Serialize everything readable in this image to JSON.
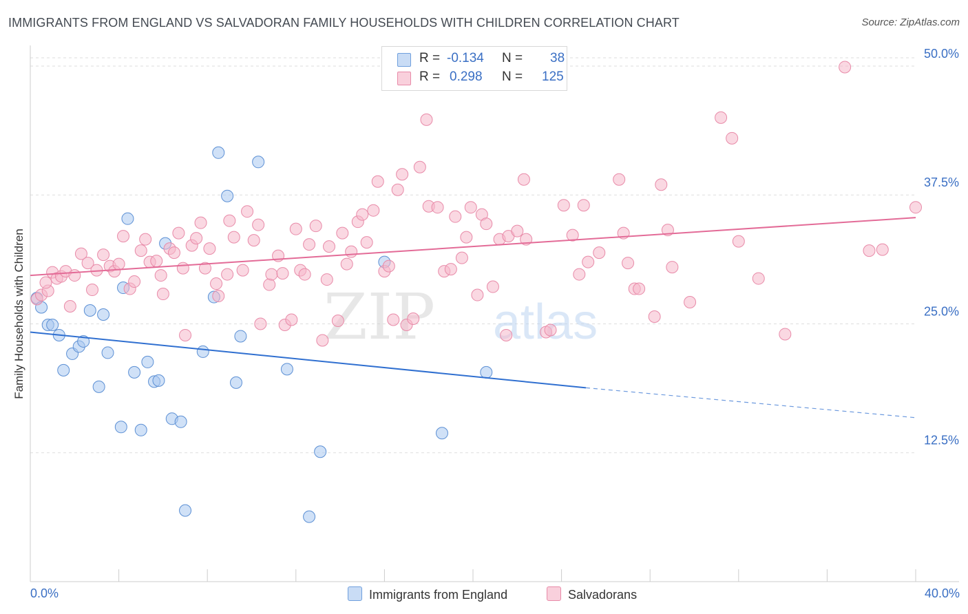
{
  "header": {
    "title": "IMMIGRANTS FROM ENGLAND VS SALVADORAN FAMILY HOUSEHOLDS WITH CHILDREN CORRELATION CHART",
    "source": "Source: ZipAtlas.com"
  },
  "watermark": {
    "zip": "ZIP",
    "atlas": "atlas"
  },
  "legend": {
    "r_label": "R =",
    "n_label": "N =",
    "series": [
      {
        "r": "-0.134",
        "n": "38",
        "color": "#a9c8f0"
      },
      {
        "r": "0.298",
        "n": "125",
        "color": "#f5b8cb"
      }
    ]
  },
  "chart_data": {
    "type": "scatter",
    "title": "IMMIGRANTS FROM ENGLAND VS SALVADORAN FAMILY HOUSEHOLDS WITH CHILDREN CORRELATION CHART",
    "xlabel": "",
    "ylabel": "Family Households with Children",
    "xlim": [
      0,
      40
    ],
    "ylim": [
      0,
      52
    ],
    "x_tick_labels": [
      "0.0%",
      "40.0%"
    ],
    "y_ticks": [
      12.5,
      25.0,
      37.5,
      50.0
    ],
    "y_tick_labels": [
      "12.5%",
      "25.0%",
      "37.5%",
      "50.0%"
    ],
    "grid": "horizontal dashed",
    "legend_placement": "bottom",
    "series": [
      {
        "name": "Immigrants from England",
        "color": "#a9c8f0",
        "stroke": "#5b8fd4",
        "trend": {
          "x": [
            0,
            25.1
          ],
          "y": [
            24.2,
            18.8
          ],
          "dashed_to": [
            40,
            15.9
          ],
          "color": "#2f6fd0"
        },
        "points": [
          [
            0.3,
            27.5
          ],
          [
            0.5,
            26.6
          ],
          [
            0.8,
            24.9
          ],
          [
            1.0,
            24.9
          ],
          [
            1.3,
            23.9
          ],
          [
            1.9,
            22.1
          ],
          [
            1.5,
            20.5
          ],
          [
            2.2,
            22.8
          ],
          [
            2.4,
            23.3
          ],
          [
            2.7,
            26.3
          ],
          [
            3.1,
            18.9
          ],
          [
            3.3,
            25.9
          ],
          [
            3.5,
            22.2
          ],
          [
            4.2,
            28.5
          ],
          [
            4.4,
            35.2
          ],
          [
            4.1,
            15.0
          ],
          [
            4.7,
            20.3
          ],
          [
            5.0,
            14.7
          ],
          [
            5.3,
            21.3
          ],
          [
            5.6,
            19.4
          ],
          [
            5.8,
            19.5
          ],
          [
            6.1,
            32.8
          ],
          [
            6.4,
            15.8
          ],
          [
            6.8,
            15.5
          ],
          [
            7.0,
            6.9
          ],
          [
            7.8,
            22.3
          ],
          [
            8.3,
            27.6
          ],
          [
            8.5,
            41.6
          ],
          [
            8.9,
            37.4
          ],
          [
            9.3,
            19.3
          ],
          [
            9.5,
            23.8
          ],
          [
            10.3,
            40.7
          ],
          [
            11.6,
            20.6
          ],
          [
            13.1,
            12.6
          ],
          [
            12.6,
            6.3
          ],
          [
            16.0,
            31.0
          ],
          [
            18.6,
            14.4
          ],
          [
            20.6,
            20.3
          ]
        ]
      },
      {
        "name": "Salvadorans",
        "color": "#f5b8cb",
        "stroke": "#e88aa8",
        "trend": {
          "x": [
            0,
            40
          ],
          "y": [
            29.7,
            35.3
          ],
          "color": "#e36b97"
        },
        "points": [
          [
            0.3,
            27.4
          ],
          [
            0.5,
            27.8
          ],
          [
            0.8,
            28.2
          ],
          [
            0.7,
            29.0
          ],
          [
            1.0,
            30.0
          ],
          [
            1.2,
            29.4
          ],
          [
            1.4,
            29.6
          ],
          [
            1.6,
            30.1
          ],
          [
            1.8,
            26.7
          ],
          [
            2.0,
            29.7
          ],
          [
            2.3,
            31.8
          ],
          [
            2.6,
            30.9
          ],
          [
            2.8,
            28.3
          ],
          [
            3.0,
            30.2
          ],
          [
            3.3,
            31.7
          ],
          [
            3.6,
            30.6
          ],
          [
            3.8,
            30.1
          ],
          [
            4.0,
            30.8
          ],
          [
            4.2,
            33.5
          ],
          [
            4.5,
            28.4
          ],
          [
            4.7,
            29.1
          ],
          [
            5.0,
            32.1
          ],
          [
            5.2,
            33.2
          ],
          [
            5.4,
            31.0
          ],
          [
            5.7,
            31.1
          ],
          [
            5.9,
            29.7
          ],
          [
            6.0,
            27.9
          ],
          [
            6.3,
            32.3
          ],
          [
            6.5,
            31.9
          ],
          [
            6.7,
            33.8
          ],
          [
            6.9,
            30.4
          ],
          [
            7.0,
            23.9
          ],
          [
            7.3,
            32.6
          ],
          [
            7.5,
            33.3
          ],
          [
            7.7,
            34.8
          ],
          [
            7.9,
            30.4
          ],
          [
            8.1,
            32.3
          ],
          [
            8.4,
            28.9
          ],
          [
            8.5,
            27.7
          ],
          [
            8.9,
            29.8
          ],
          [
            9.0,
            35.0
          ],
          [
            9.2,
            33.4
          ],
          [
            9.6,
            30.2
          ],
          [
            9.8,
            35.9
          ],
          [
            10.1,
            33.1
          ],
          [
            10.3,
            34.6
          ],
          [
            10.4,
            25.0
          ],
          [
            10.8,
            28.8
          ],
          [
            10.9,
            29.8
          ],
          [
            11.2,
            31.6
          ],
          [
            11.4,
            29.9
          ],
          [
            11.5,
            24.9
          ],
          [
            11.8,
            25.4
          ],
          [
            12.0,
            34.2
          ],
          [
            12.2,
            30.2
          ],
          [
            12.4,
            29.8
          ],
          [
            12.6,
            32.7
          ],
          [
            12.9,
            34.5
          ],
          [
            13.2,
            23.4
          ],
          [
            13.4,
            29.3
          ],
          [
            13.5,
            32.5
          ],
          [
            13.9,
            25.3
          ],
          [
            14.1,
            33.8
          ],
          [
            14.3,
            30.8
          ],
          [
            14.5,
            32.0
          ],
          [
            14.8,
            34.9
          ],
          [
            15.0,
            35.6
          ],
          [
            15.2,
            32.9
          ],
          [
            15.5,
            36.0
          ],
          [
            15.7,
            38.8
          ],
          [
            16.0,
            30.1
          ],
          [
            16.2,
            30.6
          ],
          [
            16.4,
            25.4
          ],
          [
            16.6,
            38.0
          ],
          [
            16.8,
            39.5
          ],
          [
            17.0,
            24.9
          ],
          [
            17.3,
            25.5
          ],
          [
            17.6,
            40.2
          ],
          [
            17.9,
            44.8
          ],
          [
            18.0,
            36.4
          ],
          [
            18.4,
            36.3
          ],
          [
            18.7,
            30.1
          ],
          [
            19.0,
            30.3
          ],
          [
            19.2,
            35.4
          ],
          [
            19.5,
            31.4
          ],
          [
            19.7,
            33.4
          ],
          [
            19.9,
            36.3
          ],
          [
            20.2,
            27.8
          ],
          [
            20.4,
            35.6
          ],
          [
            20.6,
            34.7
          ],
          [
            20.9,
            28.6
          ],
          [
            21.2,
            33.2
          ],
          [
            21.5,
            23.9
          ],
          [
            21.6,
            33.5
          ],
          [
            22.0,
            34.0
          ],
          [
            22.3,
            39.0
          ],
          [
            22.4,
            33.2
          ],
          [
            23.3,
            24.2
          ],
          [
            23.5,
            24.4
          ],
          [
            24.1,
            36.5
          ],
          [
            24.5,
            33.6
          ],
          [
            24.8,
            29.8
          ],
          [
            25.0,
            36.5
          ],
          [
            25.2,
            31.0
          ],
          [
            25.7,
            31.9
          ],
          [
            26.6,
            39.0
          ],
          [
            26.8,
            33.8
          ],
          [
            27.0,
            30.9
          ],
          [
            27.3,
            28.4
          ],
          [
            27.5,
            28.4
          ],
          [
            28.2,
            25.7
          ],
          [
            28.5,
            38.5
          ],
          [
            28.8,
            34.1
          ],
          [
            29.0,
            30.5
          ],
          [
            29.8,
            27.1
          ],
          [
            31.2,
            45.0
          ],
          [
            31.7,
            43.0
          ],
          [
            32.0,
            33.0
          ],
          [
            32.9,
            29.4
          ],
          [
            34.1,
            24.0
          ],
          [
            36.8,
            49.9
          ],
          [
            37.9,
            32.1
          ],
          [
            38.5,
            32.2
          ],
          [
            40.0,
            36.3
          ]
        ]
      }
    ]
  }
}
